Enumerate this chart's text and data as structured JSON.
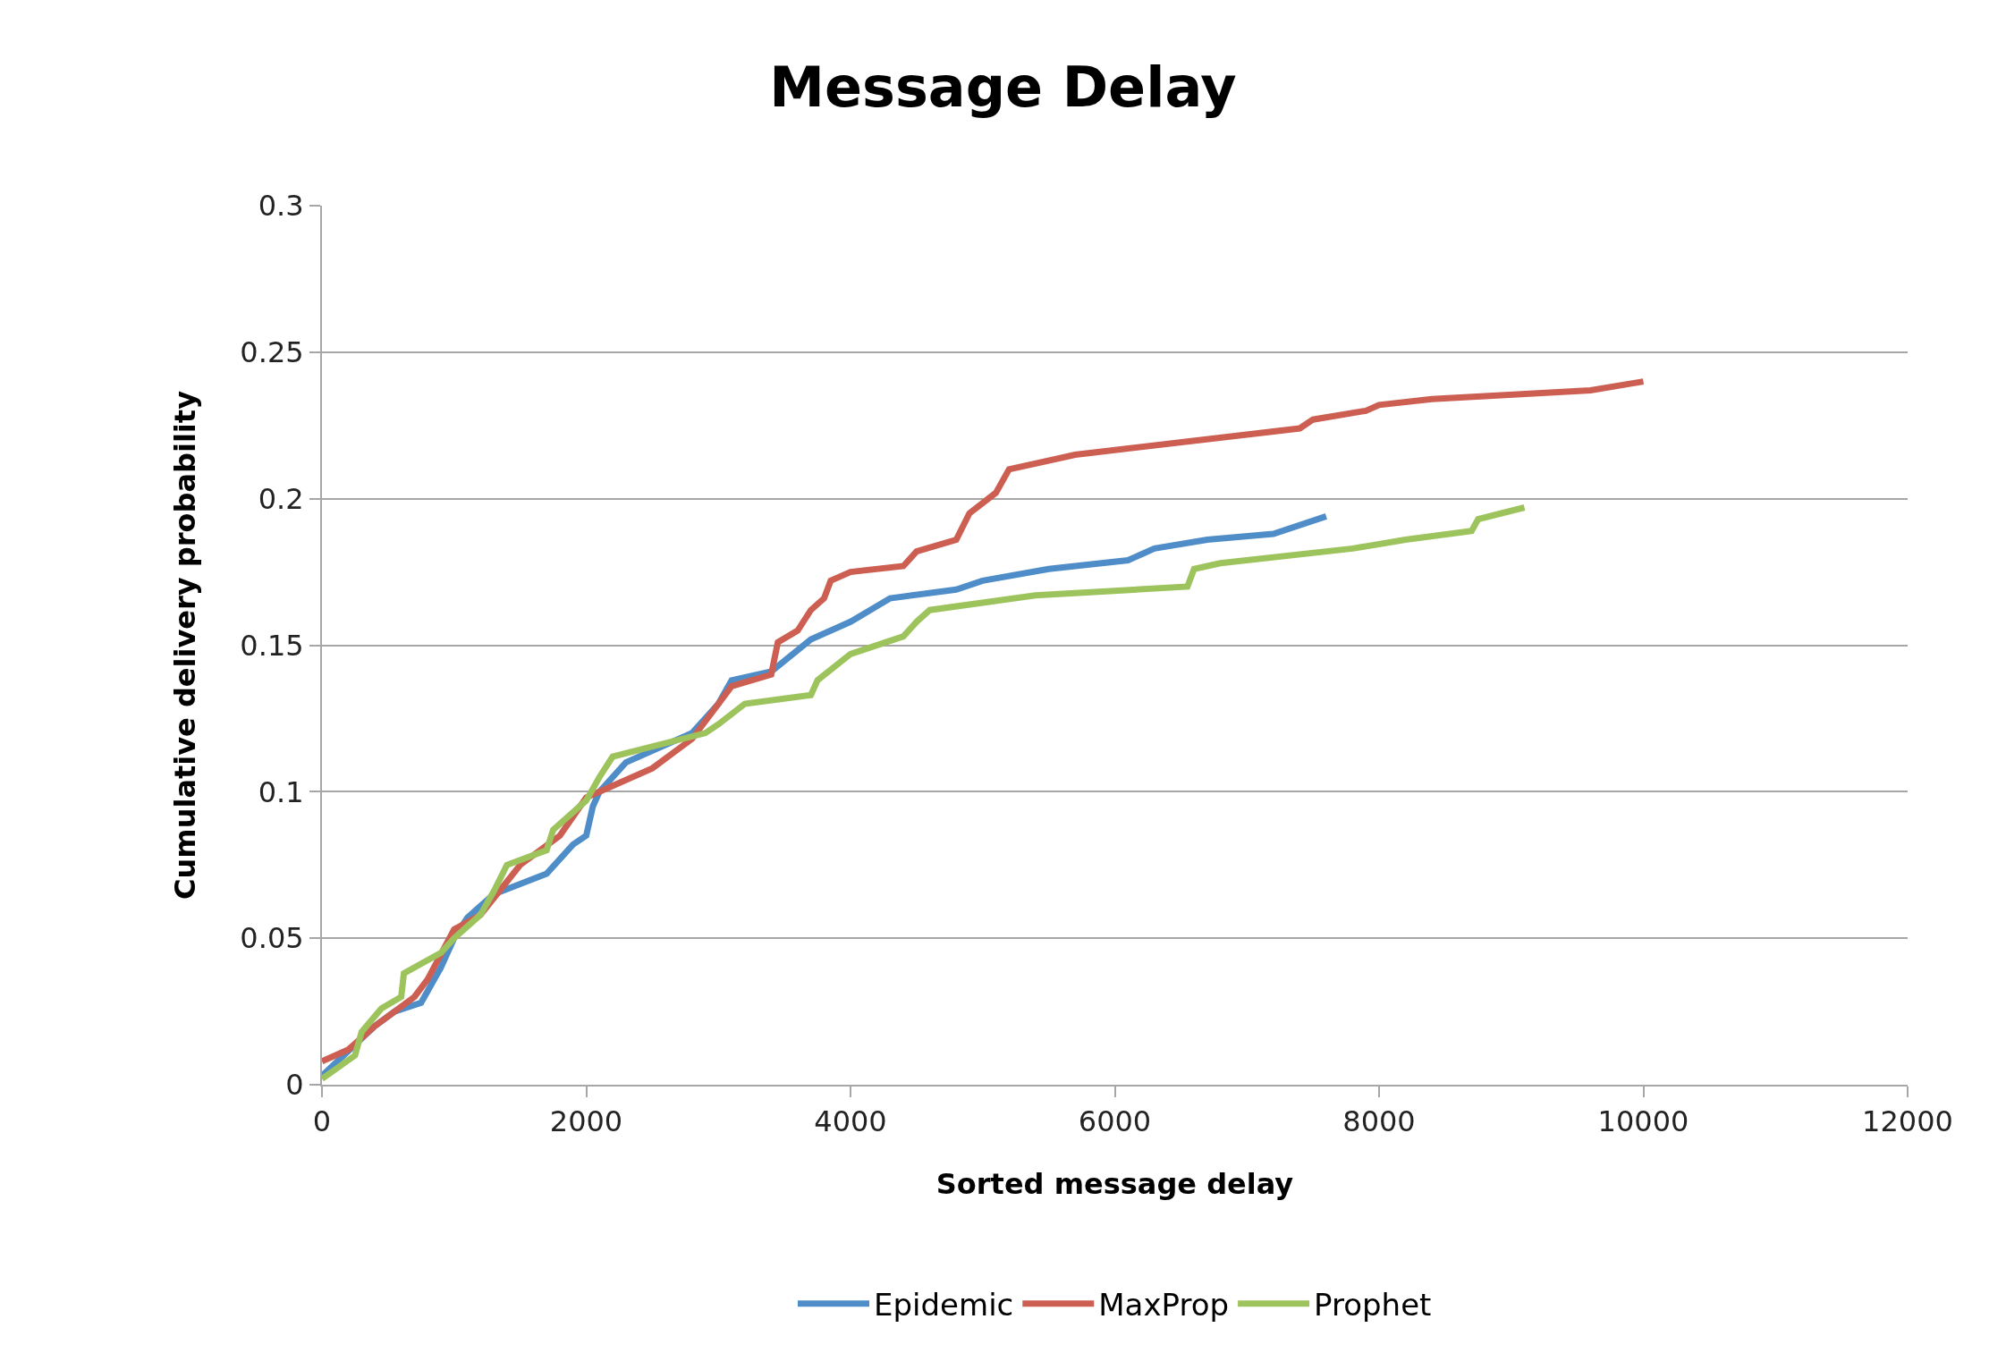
{
  "chart_data": {
    "type": "line",
    "title": "Message Delay",
    "xlabel": "Sorted message delay",
    "ylabel": "Cumulative delivery probability",
    "xlim": [
      0,
      12000
    ],
    "xticks": [
      0,
      2000,
      4000,
      6000,
      8000,
      10000,
      12000
    ],
    "ylim": [
      0,
      0.3
    ],
    "yticks": [
      0,
      0.05,
      0.1,
      0.15,
      0.2,
      0.25,
      0.3
    ],
    "grid": "y",
    "legend": "bottom",
    "marker": "none",
    "line_style": "solid",
    "series": [
      {
        "name": "Epidemic",
        "color": "#4f8dc9",
        "x": [
          0,
          400,
          550,
          750,
          900,
          1000,
          1100,
          1300,
          1700,
          1900,
          2000,
          2050,
          2100,
          2300,
          2800,
          3000,
          3100,
          3400,
          3700,
          4000,
          4300,
          4800,
          5000,
          5500,
          6100,
          6300,
          6700,
          7200,
          7600
        ],
        "values": [
          0.003,
          0.02,
          0.025,
          0.028,
          0.04,
          0.05,
          0.057,
          0.065,
          0.072,
          0.082,
          0.085,
          0.095,
          0.1,
          0.11,
          0.12,
          0.13,
          0.138,
          0.141,
          0.152,
          0.158,
          0.166,
          0.169,
          0.172,
          0.176,
          0.179,
          0.183,
          0.186,
          0.188,
          0.194
        ]
      },
      {
        "name": "MaxProp",
        "color": "#cd5f52",
        "x": [
          0,
          200,
          400,
          700,
          800,
          1000,
          1200,
          1500,
          1800,
          2000,
          2200,
          2500,
          2800,
          3000,
          3100,
          3400,
          3450,
          3600,
          3700,
          3800,
          3850,
          4000,
          4400,
          4500,
          4800,
          4900,
          5100,
          5200,
          5700,
          7400,
          7500,
          7900,
          8000,
          8400,
          9600,
          10000
        ],
        "values": [
          0.008,
          0.012,
          0.02,
          0.03,
          0.036,
          0.053,
          0.058,
          0.075,
          0.085,
          0.098,
          0.102,
          0.108,
          0.118,
          0.13,
          0.136,
          0.14,
          0.151,
          0.155,
          0.162,
          0.166,
          0.172,
          0.175,
          0.177,
          0.182,
          0.186,
          0.195,
          0.202,
          0.21,
          0.215,
          0.224,
          0.227,
          0.23,
          0.232,
          0.234,
          0.237,
          0.24
        ]
      },
      {
        "name": "Prophet",
        "color": "#9dc35c",
        "x": [
          0,
          250,
          300,
          450,
          600,
          620,
          900,
          1000,
          1200,
          1300,
          1400,
          1700,
          1750,
          2000,
          2100,
          2200,
          2900,
          3000,
          3200,
          3700,
          3750,
          4000,
          4400,
          4500,
          4600,
          5400,
          6550,
          6600,
          6800,
          7800,
          8200,
          8700,
          8750,
          9100
        ],
        "values": [
          0.002,
          0.01,
          0.018,
          0.026,
          0.03,
          0.038,
          0.045,
          0.05,
          0.058,
          0.066,
          0.075,
          0.08,
          0.087,
          0.097,
          0.105,
          0.112,
          0.12,
          0.123,
          0.13,
          0.133,
          0.138,
          0.147,
          0.153,
          0.158,
          0.162,
          0.167,
          0.17,
          0.176,
          0.178,
          0.183,
          0.186,
          0.189,
          0.193,
          0.197
        ]
      }
    ]
  }
}
